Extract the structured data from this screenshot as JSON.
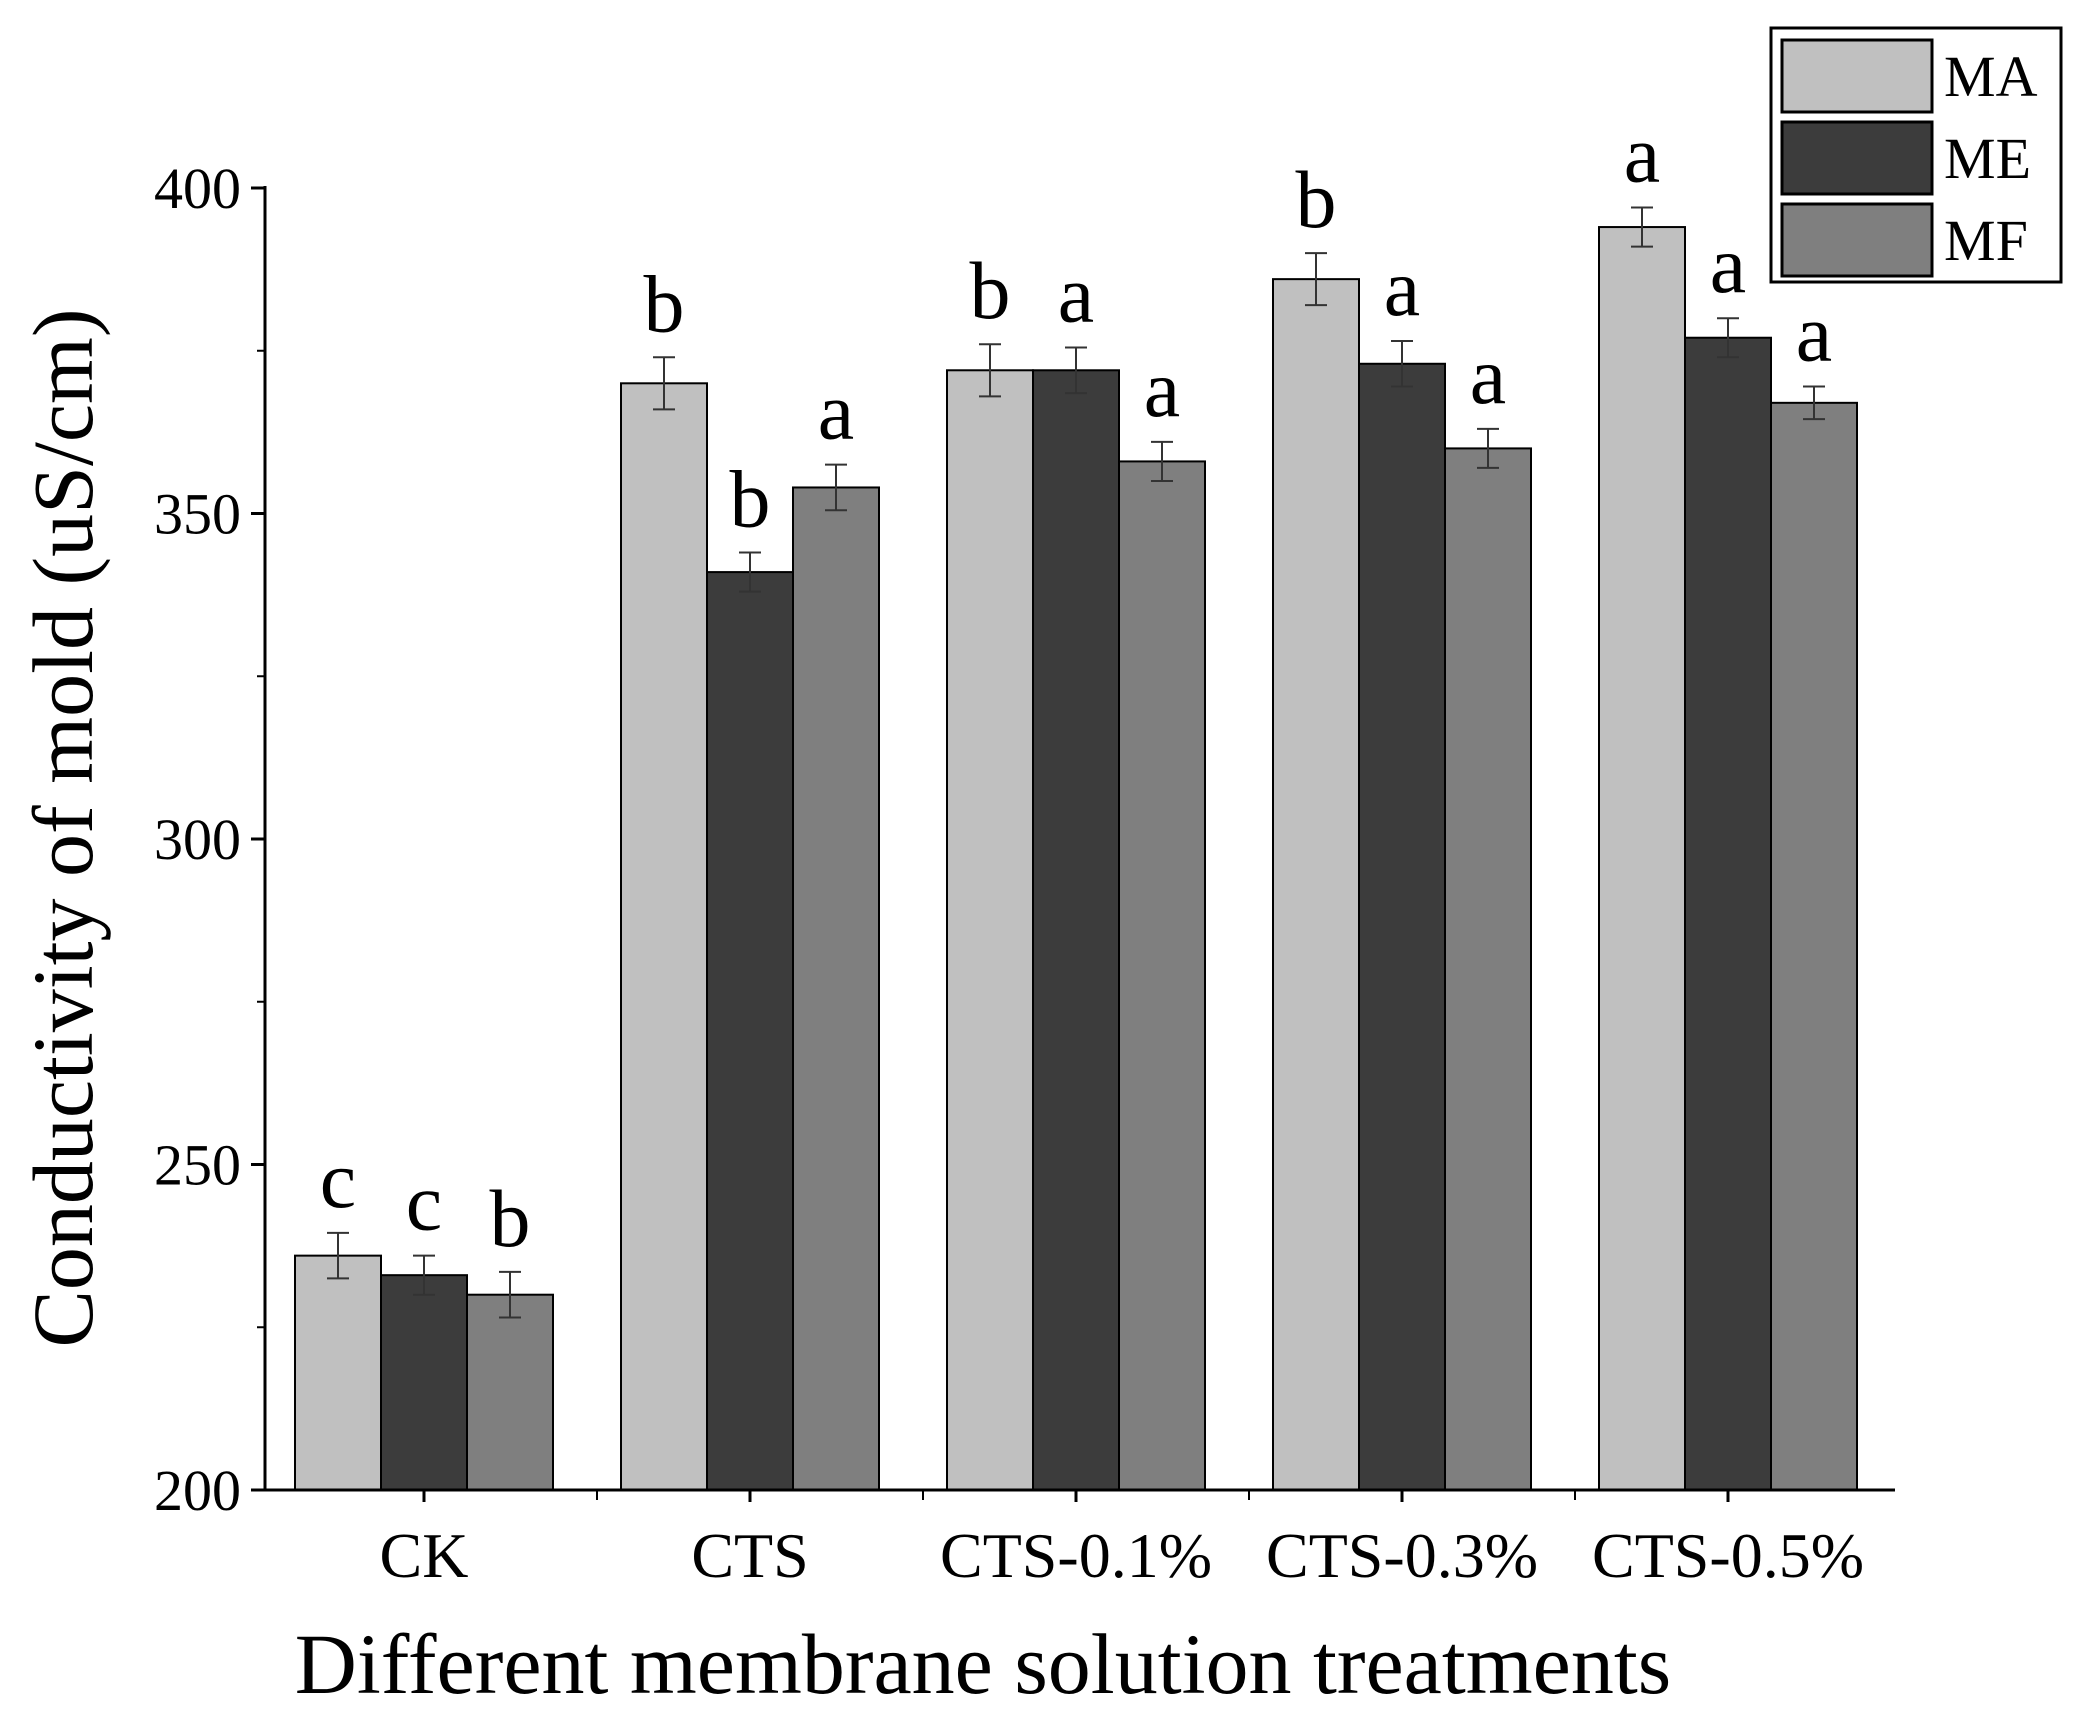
{
  "chart_data": {
    "type": "bar",
    "title": "",
    "xlabel": "Different membrane solution treatments",
    "ylabel": "Conductivity of mold (uS/cm)",
    "ylim": [
      200,
      400
    ],
    "yticks": [
      200,
      250,
      300,
      350,
      400
    ],
    "categories": [
      "CK",
      "CTS",
      "CTS-0.1%",
      "CTS-0.3%",
      "CTS-0.5%"
    ],
    "legend_position": "top-right",
    "series": [
      {
        "name": "MA",
        "color": "#c0c0c0",
        "values": [
          236,
          370,
          372,
          386,
          394
        ],
        "errors": [
          3.5,
          4,
          4,
          4,
          3
        ],
        "letters": [
          "c",
          "b",
          "b",
          "b",
          "a"
        ]
      },
      {
        "name": "ME",
        "color": "#3c3c3c",
        "values": [
          233,
          341,
          372,
          373,
          377
        ],
        "errors": [
          3,
          3,
          3.5,
          3.5,
          3
        ],
        "letters": [
          "c",
          "b",
          "a",
          "a",
          "a"
        ]
      },
      {
        "name": "MF",
        "color": "#7f7f7f",
        "values": [
          230,
          354,
          358,
          360,
          367
        ],
        "errors": [
          3.5,
          3.5,
          3,
          3,
          2.5
        ],
        "letters": [
          "b",
          "a",
          "a",
          "a",
          "a"
        ]
      }
    ]
  }
}
